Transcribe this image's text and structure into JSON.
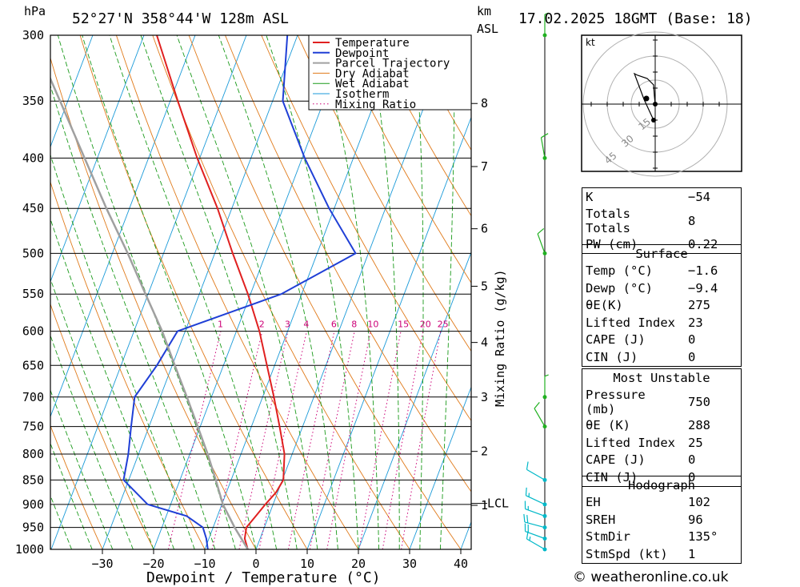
{
  "header": {
    "location": "52°27'N  358°44'W  128m  ASL",
    "datetime": "17.02.2025  18GMT  (Base: 18)",
    "pressure_unit": "hPa",
    "height_unit": "km",
    "height_unit2": "ASL"
  },
  "axes": {
    "xlabel": "Dewpoint / Temperature (°C)",
    "mixing_label": "Mixing Ratio (g/kg)",
    "lcl_label": "LCL"
  },
  "chart_data": {
    "type": "line",
    "title": "52°27'N 358°44'W 128m ASL",
    "xlabel": "Dewpoint / Temperature (°C)",
    "ylabel": "hPa",
    "x_ticks": [
      -30,
      -20,
      -10,
      0,
      10,
      20,
      30,
      40
    ],
    "pressure_levels": [
      300,
      350,
      400,
      450,
      500,
      550,
      600,
      650,
      700,
      750,
      800,
      850,
      900,
      950,
      1000
    ],
    "height_ticks_km": [
      {
        "label": "8",
        "p": 352
      },
      {
        "label": "7",
        "p": 408
      },
      {
        "label": "6",
        "p": 472
      },
      {
        "label": "5",
        "p": 540
      },
      {
        "label": "4",
        "p": 616
      },
      {
        "label": "3",
        "p": 700
      },
      {
        "label": "2",
        "p": 795
      },
      {
        "label": "1",
        "p": 902
      }
    ],
    "lcl_pressure": 898,
    "mixing_ratio_values": [
      "1",
      "2",
      "3",
      "4",
      "6",
      "8",
      "10",
      "15",
      "20",
      "25"
    ],
    "legend": [
      "Temperature",
      "Dewpoint",
      "Parcel Trajectory",
      "Dry Adiabat",
      "Wet Adiabat",
      "Isotherm",
      "Mixing Ratio"
    ],
    "colors": {
      "temperature": "#e02020",
      "dewpoint": "#1f3fd6",
      "parcel": "#a0a0a0",
      "dry_adiabat": "#e07a1a",
      "wet_adiabat": "#1a9a1a",
      "isotherm": "#1a9ad8",
      "mixing_ratio": "#cc0077",
      "wind_low": "#00b8c8",
      "wind_high": "#20b020"
    },
    "series": [
      {
        "name": "Temperature",
        "points": [
          {
            "p": 1000,
            "t": -1.6
          },
          {
            "p": 975,
            "t": -3.0
          },
          {
            "p": 950,
            "t": -3.5
          },
          {
            "p": 925,
            "t": -2.5
          },
          {
            "p": 900,
            "t": -1.5
          },
          {
            "p": 875,
            "t": -0.3
          },
          {
            "p": 850,
            "t": 0.2
          },
          {
            "p": 800,
            "t": -1.5
          },
          {
            "p": 750,
            "t": -4.5
          },
          {
            "p": 700,
            "t": -7.8
          },
          {
            "p": 650,
            "t": -11.5
          },
          {
            "p": 600,
            "t": -15.5
          },
          {
            "p": 550,
            "t": -20.5
          },
          {
            "p": 500,
            "t": -26.5
          },
          {
            "p": 450,
            "t": -32.8
          },
          {
            "p": 400,
            "t": -40.5
          },
          {
            "p": 350,
            "t": -48.5
          },
          {
            "p": 300,
            "t": -57.5
          }
        ]
      },
      {
        "name": "Dewpoint",
        "points": [
          {
            "p": 1000,
            "t": -9.4
          },
          {
            "p": 975,
            "t": -10.5
          },
          {
            "p": 950,
            "t": -12.0
          },
          {
            "p": 925,
            "t": -16.0
          },
          {
            "p": 900,
            "t": -24.5
          },
          {
            "p": 850,
            "t": -31.0
          },
          {
            "p": 800,
            "t": -32.0
          },
          {
            "p": 750,
            "t": -33.5
          },
          {
            "p": 700,
            "t": -35.0
          },
          {
            "p": 650,
            "t": -33.0
          },
          {
            "p": 600,
            "t": -31.5
          },
          {
            "p": 550,
            "t": -14.0
          },
          {
            "p": 500,
            "t": -2.5
          },
          {
            "p": 450,
            "t": -11.0
          },
          {
            "p": 400,
            "t": -19.5
          },
          {
            "p": 350,
            "t": -28.0
          },
          {
            "p": 300,
            "t": -32.0
          }
        ]
      },
      {
        "name": "Parcel Trajectory",
        "points": [
          {
            "p": 1000,
            "t": -1.6
          },
          {
            "p": 950,
            "t": -5.8
          },
          {
            "p": 900,
            "t": -9.8
          },
          {
            "p": 850,
            "t": -13.0
          },
          {
            "p": 800,
            "t": -16.5
          },
          {
            "p": 750,
            "t": -20.5
          },
          {
            "p": 700,
            "t": -24.8
          },
          {
            "p": 650,
            "t": -29.5
          },
          {
            "p": 600,
            "t": -34.5
          },
          {
            "p": 550,
            "t": -40.5
          },
          {
            "p": 500,
            "t": -47.0
          },
          {
            "p": 450,
            "t": -54.5
          },
          {
            "p": 400,
            "t": -62.5
          },
          {
            "p": 350,
            "t": -71.5
          },
          {
            "p": 300,
            "t": -82.0
          }
        ]
      }
    ],
    "wind_profile": [
      {
        "p": 1000,
        "dir": 300,
        "spd": 15
      },
      {
        "p": 975,
        "dir": 290,
        "spd": 20
      },
      {
        "p": 950,
        "dir": 285,
        "spd": 20
      },
      {
        "p": 925,
        "dir": 290,
        "spd": 15
      },
      {
        "p": 900,
        "dir": 295,
        "spd": 15
      },
      {
        "p": 850,
        "dir": 300,
        "spd": 10
      },
      {
        "p": 750,
        "dir": 330,
        "spd": 10
      },
      {
        "p": 700,
        "dir": 0,
        "spd": 5
      },
      {
        "p": 500,
        "dir": 340,
        "spd": 10
      },
      {
        "p": 400,
        "dir": 350,
        "spd": 10
      },
      {
        "p": 300,
        "dir": 0,
        "spd": 5
      }
    ]
  },
  "hodograph": {
    "unit_label": "kt",
    "ring_labels": [
      "15",
      "30",
      "45"
    ],
    "trace": [
      [
        0,
        0
      ],
      [
        -0.5,
        5
      ],
      [
        -1,
        12
      ],
      [
        -5,
        16
      ],
      [
        -11,
        18
      ],
      [
        -13,
        19
      ],
      [
        -7,
        3
      ],
      [
        -1,
        -10
      ]
    ]
  },
  "indices_general": [
    {
      "label": "K",
      "value": "-54"
    },
    {
      "label": "Totals Totals",
      "value": "8"
    },
    {
      "label": "PW (cm)",
      "value": "0.22"
    }
  ],
  "surface": {
    "title": "Surface",
    "rows": [
      {
        "label": "Temp (°C)",
        "value": "-1.6"
      },
      {
        "label": "Dewp (°C)",
        "value": "-9.4"
      },
      {
        "label": "θE(K)",
        "value": "275"
      },
      {
        "label": "Lifted Index",
        "value": "23"
      },
      {
        "label": "CAPE (J)",
        "value": "0"
      },
      {
        "label": "CIN (J)",
        "value": "0"
      }
    ]
  },
  "most_unstable": {
    "title": "Most Unstable",
    "rows": [
      {
        "label": "Pressure (mb)",
        "value": "750"
      },
      {
        "label": "θE (K)",
        "value": "288"
      },
      {
        "label": "Lifted Index",
        "value": "25"
      },
      {
        "label": "CAPE (J)",
        "value": "0"
      },
      {
        "label": "CIN (J)",
        "value": "0"
      }
    ]
  },
  "hodograph_indices": {
    "title": "Hodograph",
    "rows": [
      {
        "label": "EH",
        "value": "102"
      },
      {
        "label": "SREH",
        "value": "96"
      },
      {
        "label": "StmDir",
        "value": "135°"
      },
      {
        "label": "StmSpd (kt)",
        "value": "1"
      }
    ]
  },
  "footer": {
    "copyright": "© weatheronline.co.uk"
  }
}
